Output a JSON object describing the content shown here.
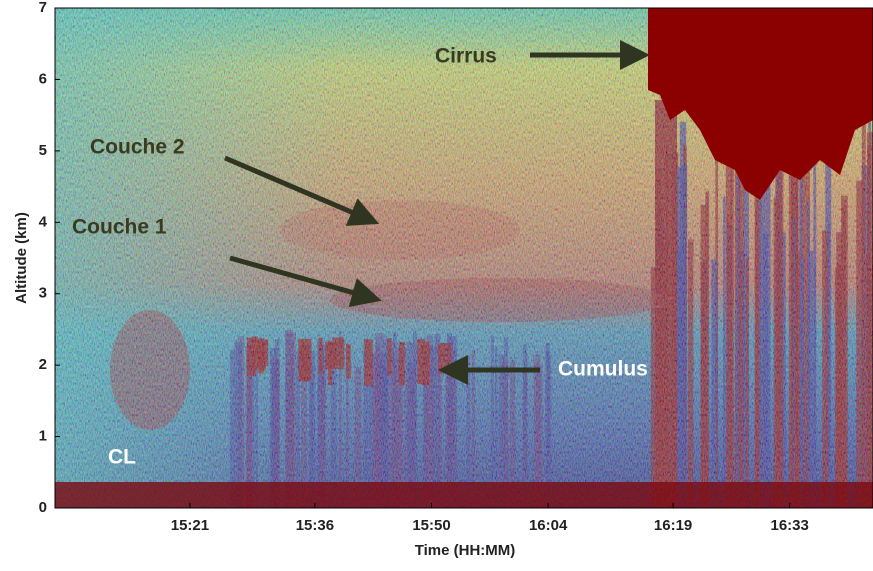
{
  "chart_data": {
    "type": "image",
    "xlabel": "Time (HH:MM)",
    "ylabel": "Altitude (km)",
    "xlim": [
      904.8,
      1003
    ],
    "ylim": [
      0,
      7
    ],
    "xticks": [
      {
        "value": 921,
        "label": "15:21"
      },
      {
        "value": 936,
        "label": "15:36"
      },
      {
        "value": 950,
        "label": "15:50"
      },
      {
        "value": 964,
        "label": "16:04"
      },
      {
        "value": 979,
        "label": "16:19"
      },
      {
        "value": 993,
        "label": "16:33"
      }
    ],
    "yticks": [
      0,
      1,
      2,
      3,
      4,
      5,
      6,
      7
    ],
    "annotations": [
      "Cirrus",
      "Couche 2",
      "Couche 1",
      "Cumulus",
      "CL"
    ]
  }
}
